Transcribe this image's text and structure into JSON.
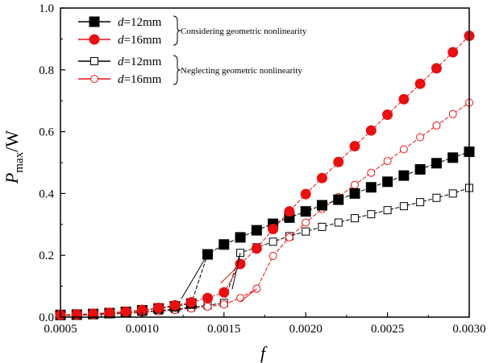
{
  "chart_data": {
    "type": "line",
    "xlabel": "f",
    "ylabel": "P_max/W",
    "xlim": [
      0.0005,
      0.003
    ],
    "ylim": [
      0.0,
      1.0
    ],
    "xticks": [
      "0.0005",
      "0.0010",
      "0.0015",
      "0.0020",
      "0.0025",
      "0.0030"
    ],
    "yticks": [
      "0.0",
      "0.2",
      "0.4",
      "0.6",
      "0.8",
      "1.0"
    ],
    "grid": false,
    "legend_position": "top-left",
    "legend": [
      {
        "prefix": "d",
        "value": "=12mm",
        "marker": "square",
        "filled": true,
        "color": "#000000"
      },
      {
        "prefix": "d",
        "value": "=16mm",
        "marker": "circle",
        "filled": true,
        "color": "#e81010"
      },
      {
        "prefix": "d",
        "value": "=12mm",
        "marker": "square",
        "filled": false,
        "color": "#000000"
      },
      {
        "prefix": "d",
        "value": "=16mm",
        "marker": "circle",
        "filled": false,
        "color": "#e81010"
      }
    ],
    "legend_groups": [
      {
        "text": "Considering geometric nonlinearity"
      },
      {
        "text": "Neglecting geometric nonlinearity"
      }
    ],
    "x": [
      0.0005,
      0.0006,
      0.0007,
      0.0008,
      0.0009,
      0.001,
      0.0011,
      0.0012,
      0.0013,
      0.0014,
      0.0015,
      0.0016,
      0.0017,
      0.0018,
      0.0019,
      0.002,
      0.0021,
      0.0022,
      0.0023,
      0.0024,
      0.0025,
      0.0026,
      0.0027,
      0.0028,
      0.0029,
      0.003
    ],
    "series": [
      {
        "marker": "square",
        "filled": true,
        "color": "#000000",
        "values": [
          0.007,
          0.008,
          0.01,
          0.013,
          0.017,
          0.022,
          0.028,
          0.035,
          0.044,
          0.203,
          0.235,
          0.258,
          0.281,
          0.302,
          0.322,
          0.342,
          0.362,
          0.38,
          0.4,
          0.42,
          0.438,
          0.458,
          0.478,
          0.498,
          0.516,
          0.535
        ]
      },
      {
        "marker": "circle",
        "filled": true,
        "color": "#e81010",
        "values": [
          0.007,
          0.009,
          0.011,
          0.014,
          0.018,
          0.023,
          0.03,
          0.038,
          0.048,
          0.062,
          0.08,
          0.172,
          0.222,
          0.285,
          0.342,
          0.398,
          0.45,
          0.502,
          0.553,
          0.604,
          0.655,
          0.705,
          0.755,
          0.805,
          0.857,
          0.91
        ]
      },
      {
        "marker": "square",
        "filled": false,
        "color": "#000000",
        "values": [
          0.005,
          0.006,
          0.008,
          0.01,
          0.013,
          0.017,
          0.021,
          0.026,
          0.032,
          0.038,
          0.046,
          0.208,
          0.226,
          0.244,
          0.262,
          0.277,
          0.292,
          0.306,
          0.32,
          0.333,
          0.346,
          0.359,
          0.372,
          0.386,
          0.4,
          0.418
        ]
      },
      {
        "marker": "circle",
        "filled": false,
        "color": "#e81010",
        "values": [
          0.005,
          0.006,
          0.008,
          0.01,
          0.012,
          0.015,
          0.019,
          0.023,
          0.028,
          0.034,
          0.041,
          0.062,
          0.092,
          0.198,
          0.258,
          0.306,
          0.35,
          0.388,
          0.428,
          0.467,
          0.505,
          0.543,
          0.582,
          0.62,
          0.657,
          0.694
        ]
      }
    ],
    "annotations": [
      {
        "from": [
          0.00124,
          0.06
        ],
        "to": [
          0.0014,
          0.203
        ],
        "color": "#000000"
      },
      {
        "from": [
          0.00155,
          0.09
        ],
        "to": [
          0.0016,
          0.208
        ],
        "color": "#000000"
      },
      {
        "from": [
          0.00148,
          0.11
        ],
        "to": [
          0.0016,
          0.172
        ],
        "color": "#e81010"
      },
      {
        "from": [
          0.0016,
          0.05
        ],
        "to": [
          0.0017,
          0.092
        ],
        "color": "#e81010"
      }
    ]
  }
}
